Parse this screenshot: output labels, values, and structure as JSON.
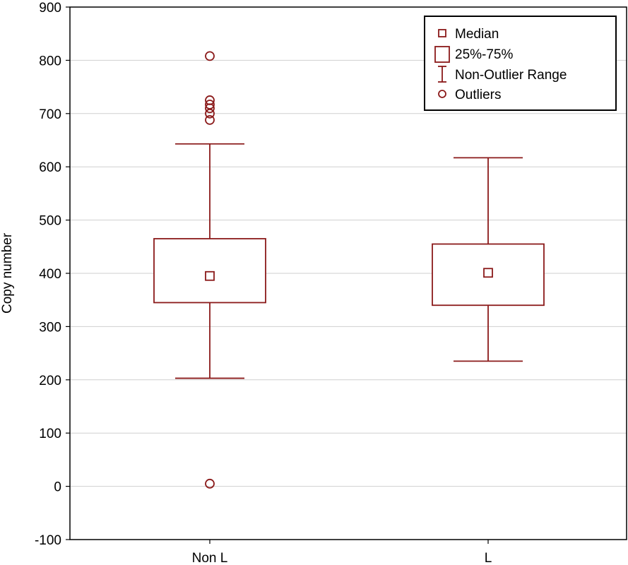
{
  "chart_data": {
    "type": "boxplot",
    "ylabel": "Copy number",
    "ylim": [
      -100,
      900
    ],
    "yticks": [
      -100,
      0,
      100,
      200,
      300,
      400,
      500,
      600,
      700,
      800,
      900
    ],
    "categories": [
      "Non L",
      "L"
    ],
    "grid": true,
    "legend_position": "top-right",
    "legend": [
      {
        "symbol": "median",
        "label": "Median"
      },
      {
        "symbol": "box",
        "label": "25%-75%"
      },
      {
        "symbol": "whisker",
        "label": "Non-Outlier Range"
      },
      {
        "symbol": "outlier",
        "label": "Outliers"
      }
    ],
    "color": "#8b1a1a",
    "boxes": [
      {
        "category": "Non L",
        "median": 395,
        "q1": 345,
        "q3": 465,
        "whisker_low": 203,
        "whisker_high": 643,
        "outliers": [
          808,
          725,
          717,
          710,
          700,
          688,
          5
        ]
      },
      {
        "category": "L",
        "median": 401,
        "q1": 340,
        "q3": 455,
        "whisker_low": 235,
        "whisker_high": 617,
        "outliers": []
      }
    ]
  }
}
